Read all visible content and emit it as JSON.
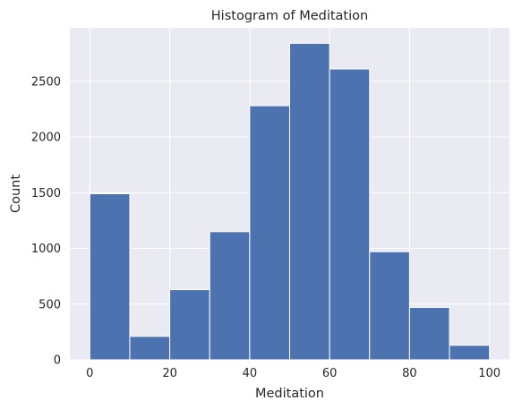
{
  "chart_data": {
    "type": "bar",
    "title": "Histogram of Meditation",
    "xlabel": "Meditation",
    "ylabel": "Count",
    "bins": [
      {
        "x0": 0,
        "x1": 10,
        "count": 1490
      },
      {
        "x0": 10,
        "x1": 20,
        "count": 210
      },
      {
        "x0": 20,
        "x1": 30,
        "count": 630
      },
      {
        "x0": 30,
        "x1": 40,
        "count": 1150
      },
      {
        "x0": 40,
        "x1": 50,
        "count": 2280
      },
      {
        "x0": 50,
        "x1": 60,
        "count": 2840
      },
      {
        "x0": 60,
        "x1": 70,
        "count": 2610
      },
      {
        "x0": 70,
        "x1": 80,
        "count": 970
      },
      {
        "x0": 80,
        "x1": 90,
        "count": 470
      },
      {
        "x0": 90,
        "x1": 100,
        "count": 130
      }
    ],
    "xticks": [
      0,
      20,
      40,
      60,
      80,
      100
    ],
    "yticks": [
      0,
      500,
      1000,
      1500,
      2000,
      2500
    ],
    "xlim": [
      -5,
      105
    ],
    "ylim": [
      0,
      2980
    ],
    "grid": true,
    "bar_color": "#4c72b0",
    "background_color": "#eaeaf2"
  }
}
